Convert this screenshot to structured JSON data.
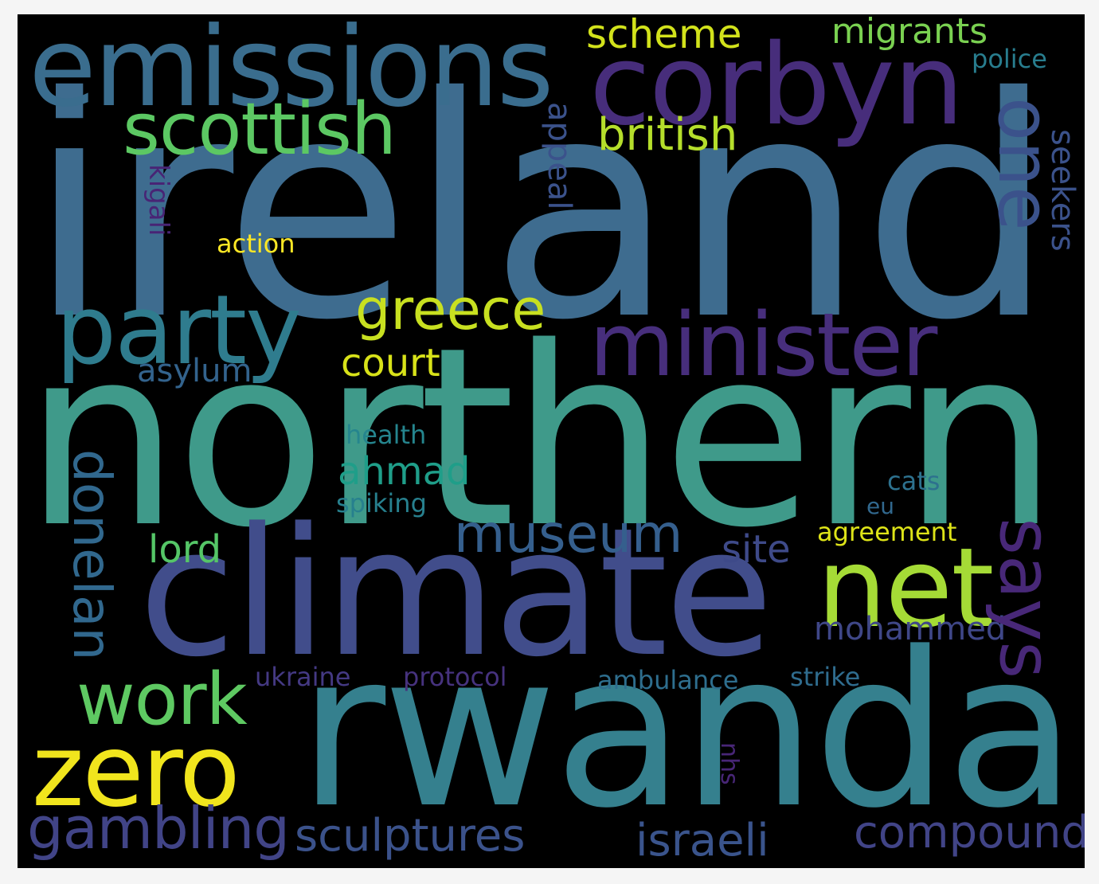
{
  "words": [
    {
      "text": "ireland",
      "color": "#3e6c8f"
    },
    {
      "text": "northern",
      "color": "#3f9a8a"
    },
    {
      "text": "climate",
      "color": "#414d8b"
    },
    {
      "text": "rwanda",
      "color": "#35808e"
    },
    {
      "text": "emissions",
      "color": "#3a6d8e"
    },
    {
      "text": "corbyn",
      "color": "#472d7b"
    },
    {
      "text": "scottish",
      "color": "#5cc863"
    },
    {
      "text": "minister",
      "color": "#472e7c"
    },
    {
      "text": "party",
      "color": "#2f7c8e"
    },
    {
      "text": "zero",
      "color": "#f1e51d"
    },
    {
      "text": "net",
      "color": "#a5db36"
    },
    {
      "text": "work",
      "color": "#5ec962"
    },
    {
      "text": "gambling",
      "color": "#414487"
    },
    {
      "text": "greece",
      "color": "#c8e020"
    },
    {
      "text": "one",
      "color": "#3b528b"
    },
    {
      "text": "says",
      "color": "#482878"
    },
    {
      "text": "donelan",
      "color": "#31688e"
    },
    {
      "text": "museum",
      "color": "#355f8d"
    },
    {
      "text": "sculptures",
      "color": "#3b528b"
    },
    {
      "text": "israeli",
      "color": "#3a548c"
    },
    {
      "text": "compound",
      "color": "#414487"
    },
    {
      "text": "british",
      "color": "#b5de2b"
    },
    {
      "text": "scheme",
      "color": "#d2e21b"
    },
    {
      "text": "migrants",
      "color": "#7ad151"
    },
    {
      "text": "ahmad",
      "color": "#1f9e89"
    },
    {
      "text": "lord",
      "color": "#55c667"
    },
    {
      "text": "site",
      "color": "#3e4a89"
    },
    {
      "text": "court",
      "color": "#d8e219"
    },
    {
      "text": "asylum",
      "color": "#33638d"
    },
    {
      "text": "appeal",
      "color": "#3b528b"
    },
    {
      "text": "seekers",
      "color": "#3b528b"
    },
    {
      "text": "kigali",
      "color": "#482475"
    },
    {
      "text": "action",
      "color": "#fde725"
    },
    {
      "text": "police",
      "color": "#287d8e"
    },
    {
      "text": "mohammed",
      "color": "#3f4788"
    },
    {
      "text": "health",
      "color": "#25858e"
    },
    {
      "text": "spiking",
      "color": "#27808e"
    },
    {
      "text": "cats",
      "color": "#2d718e"
    },
    {
      "text": "eu",
      "color": "#31688e"
    },
    {
      "text": "agreement",
      "color": "#dde318"
    },
    {
      "text": "ukraine",
      "color": "#443983"
    },
    {
      "text": "protocol",
      "color": "#46327e"
    },
    {
      "text": "ambulance",
      "color": "#2e6e8e"
    },
    {
      "text": "strike",
      "color": "#2f6c8e"
    },
    {
      "text": "nhs",
      "color": "#482677"
    }
  ]
}
